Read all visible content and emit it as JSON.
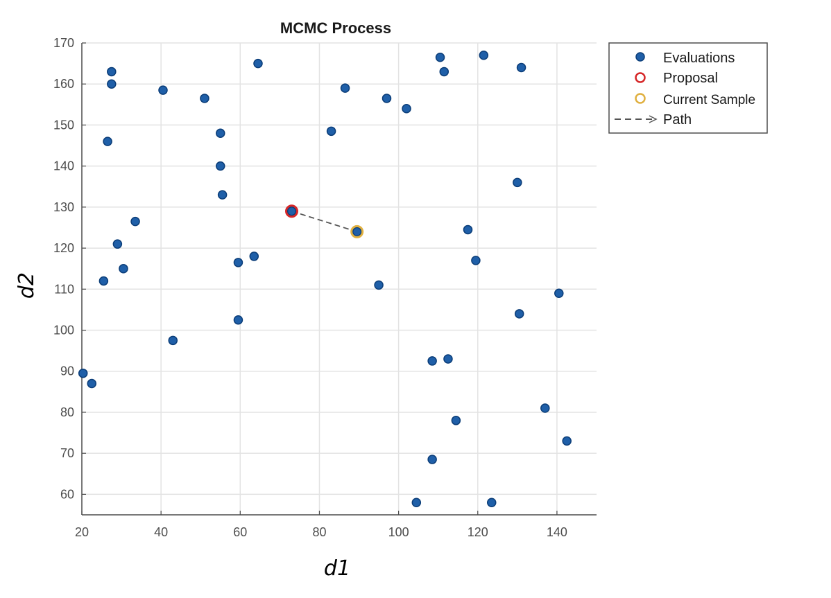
{
  "chart_data": {
    "type": "scatter",
    "title": "MCMC Process",
    "xlabel": "d1",
    "ylabel": "d2",
    "xlim": [
      20,
      150
    ],
    "ylim": [
      55,
      170
    ],
    "xticks": [
      20,
      40,
      60,
      80,
      100,
      120,
      140
    ],
    "yticks": [
      60,
      70,
      80,
      90,
      100,
      110,
      120,
      130,
      140,
      150,
      160,
      170
    ],
    "grid": true,
    "legend_position": "outside-top-right",
    "colors": {
      "evaluations": "#1f5fa8",
      "evaluations_edge": "#0b3d78",
      "proposal": "#d62728",
      "current_sample": "#e0b040",
      "path": "#555555",
      "grid": "#e3e3e3",
      "axis": "#4d4d4d"
    },
    "series": [
      {
        "name": "Evaluations",
        "marker": "filled-circle",
        "points": [
          [
            20.3,
            89.5
          ],
          [
            22.5,
            87
          ],
          [
            25.5,
            112
          ],
          [
            26.5,
            146
          ],
          [
            27.5,
            163
          ],
          [
            27.5,
            160
          ],
          [
            29,
            121
          ],
          [
            30.5,
            115
          ],
          [
            33.5,
            126.5
          ],
          [
            40.5,
            158.5
          ],
          [
            43,
            97.5
          ],
          [
            51,
            156.5
          ],
          [
            55,
            148
          ],
          [
            55,
            140
          ],
          [
            55.5,
            133
          ],
          [
            59.5,
            116.5
          ],
          [
            59.5,
            102.5
          ],
          [
            63.5,
            118
          ],
          [
            64.5,
            165
          ],
          [
            73,
            129
          ],
          [
            83,
            148.5
          ],
          [
            86.5,
            159
          ],
          [
            89.5,
            124
          ],
          [
            95,
            111
          ],
          [
            97,
            156.5
          ],
          [
            102,
            154
          ],
          [
            104.5,
            58
          ],
          [
            108.5,
            92.5
          ],
          [
            108.5,
            68.5
          ],
          [
            110.5,
            166.5
          ],
          [
            111.5,
            163
          ],
          [
            112.5,
            93
          ],
          [
            114.5,
            78
          ],
          [
            117.5,
            124.5
          ],
          [
            119.5,
            117
          ],
          [
            121.5,
            167
          ],
          [
            123.5,
            58
          ],
          [
            130,
            136
          ],
          [
            130.5,
            104
          ],
          [
            131,
            164
          ],
          [
            137,
            81
          ],
          [
            140.5,
            109
          ],
          [
            142.5,
            73
          ]
        ]
      },
      {
        "name": "Proposal",
        "marker": "open-circle",
        "points": [
          [
            73,
            129
          ]
        ]
      },
      {
        "name": "Current Sample",
        "marker": "open-circle",
        "points": [
          [
            89.5,
            124
          ]
        ]
      },
      {
        "name": "Path",
        "marker": "dashed-arrow",
        "points": [
          [
            73,
            129
          ],
          [
            89.5,
            124
          ]
        ]
      }
    ]
  }
}
